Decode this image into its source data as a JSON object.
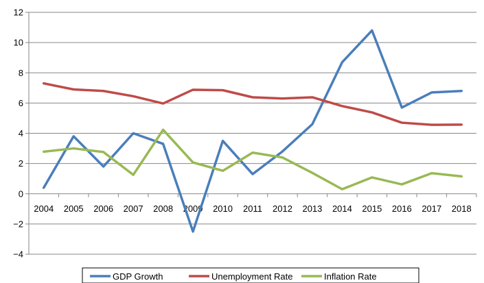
{
  "chart_data": {
    "type": "line",
    "title": "",
    "xlabel": "",
    "ylabel": "",
    "categories": [
      "2004",
      "2005",
      "2006",
      "2007",
      "2008",
      "2009",
      "2010",
      "2011",
      "2012",
      "2013",
      "2014",
      "2015",
      "2016",
      "2017",
      "2018"
    ],
    "ylim": [
      -4,
      12
    ],
    "yticks": [
      -4,
      -2,
      0,
      2,
      4,
      6,
      8,
      10,
      12
    ],
    "ytick_labels": [
      "−4",
      "−2",
      "0",
      "2",
      "4",
      "6",
      "8",
      "10",
      "12"
    ],
    "grid": true,
    "legend_position": "bottom",
    "series": [
      {
        "name": "GDP Growth",
        "color": "#4a7ebb",
        "values": [
          0.4,
          3.8,
          1.8,
          4.0,
          3.3,
          -2.5,
          3.5,
          1.3,
          2.8,
          4.6,
          8.7,
          10.8,
          5.7,
          6.7,
          6.8
        ]
      },
      {
        "name": "Unemployment Rate",
        "color": "#be4b48",
        "values": [
          7.3,
          6.9,
          6.8,
          6.45,
          5.97,
          6.88,
          6.85,
          6.38,
          6.3,
          6.38,
          5.8,
          5.38,
          4.7,
          4.56,
          4.57
        ]
      },
      {
        "name": "Inflation Rate",
        "color": "#98b954",
        "values": [
          2.78,
          3.0,
          2.76,
          1.25,
          4.23,
          2.07,
          1.52,
          2.72,
          2.4,
          1.38,
          0.3,
          1.08,
          0.62,
          1.36,
          1.15
        ]
      }
    ]
  }
}
